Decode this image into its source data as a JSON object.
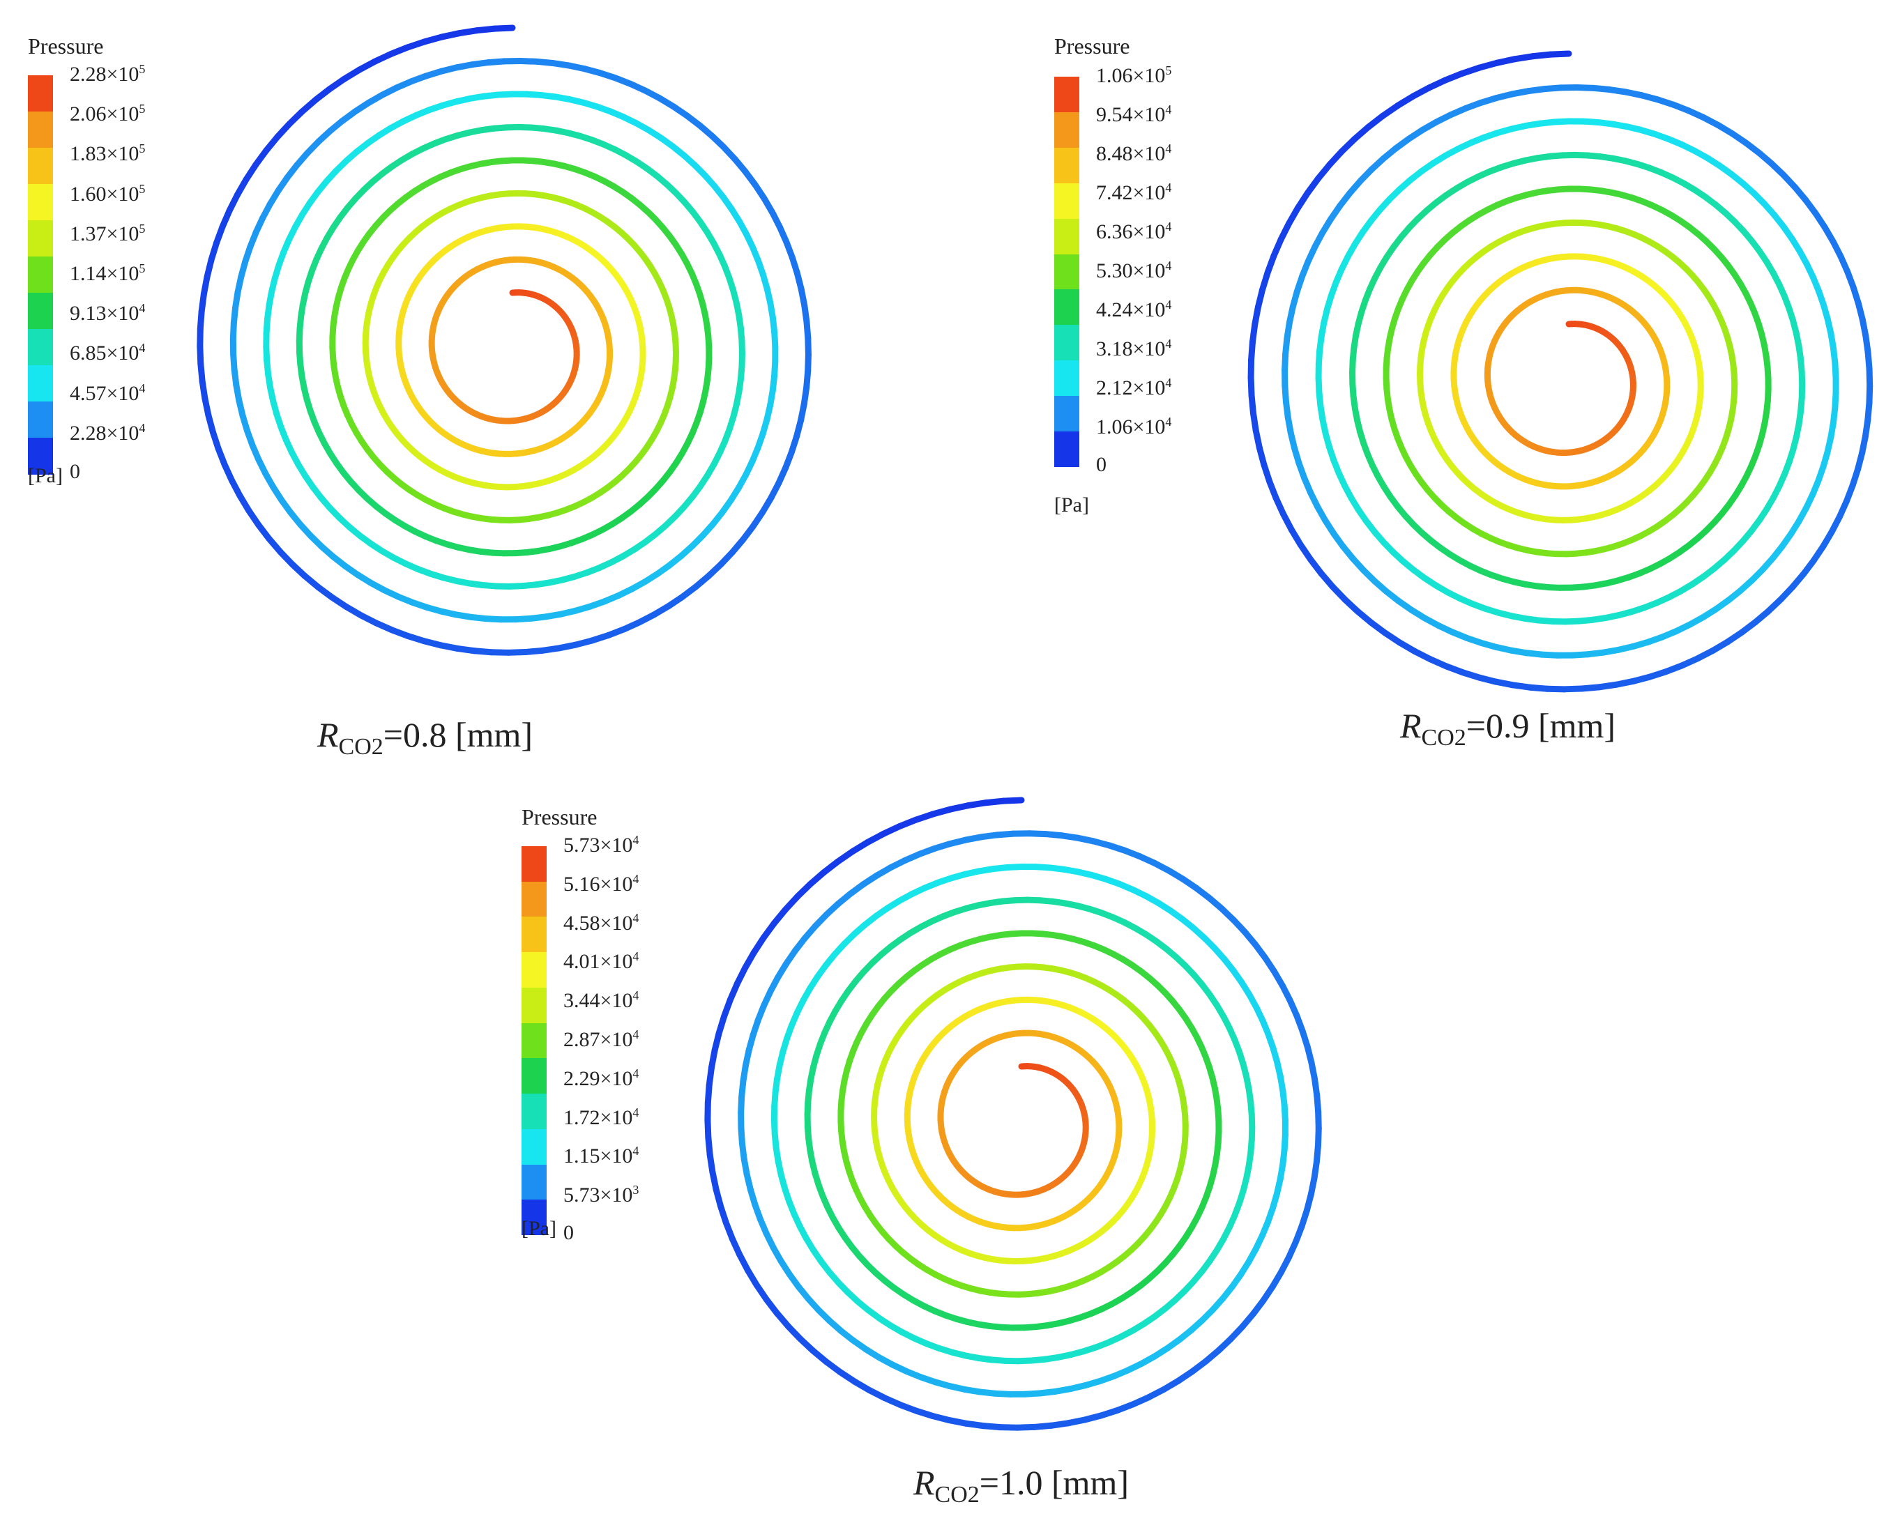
{
  "colormap": [
    "#1536e8",
    "#1e8ff2",
    "#17e6f0",
    "#17e0b6",
    "#1dd24f",
    "#6fe01c",
    "#c9ee16",
    "#f6f524",
    "#f8c318",
    "#f3981a",
    "#ee4818"
  ],
  "panels": [
    {
      "legend": {
        "title": "Pressure",
        "unit": "[Pa]",
        "ticks": [
          {
            "mant": "2.28",
            "exp": "5"
          },
          {
            "mant": "2.06",
            "exp": "5"
          },
          {
            "mant": "1.83",
            "exp": "5"
          },
          {
            "mant": "1.60",
            "exp": "5"
          },
          {
            "mant": "1.37",
            "exp": "5"
          },
          {
            "mant": "1.14",
            "exp": "5"
          },
          {
            "mant": "9.13",
            "exp": "4"
          },
          {
            "mant": "6.85",
            "exp": "4"
          },
          {
            "mant": "4.57",
            "exp": "4"
          },
          {
            "mant": "2.28",
            "exp": "4"
          },
          {
            "mant": "0",
            "exp": ""
          }
        ]
      },
      "caption": {
        "symbol": "R",
        "subscript": "CO2",
        "value": "=0.8 [mm]"
      }
    },
    {
      "legend": {
        "title": "Pressure",
        "unit": "[Pa]",
        "ticks": [
          {
            "mant": "1.06",
            "exp": "5"
          },
          {
            "mant": "9.54",
            "exp": "4"
          },
          {
            "mant": "8.48",
            "exp": "4"
          },
          {
            "mant": "7.42",
            "exp": "4"
          },
          {
            "mant": "6.36",
            "exp": "4"
          },
          {
            "mant": "5.30",
            "exp": "4"
          },
          {
            "mant": "4.24",
            "exp": "4"
          },
          {
            "mant": "3.18",
            "exp": "4"
          },
          {
            "mant": "2.12",
            "exp": "4"
          },
          {
            "mant": "1.06",
            "exp": "4"
          },
          {
            "mant": "0",
            "exp": ""
          }
        ]
      },
      "caption": {
        "symbol": "R",
        "subscript": "CO2",
        "value": "=0.9 [mm]"
      }
    },
    {
      "legend": {
        "title": "Pressure",
        "unit": "[Pa]",
        "ticks": [
          {
            "mant": "5.73",
            "exp": "4"
          },
          {
            "mant": "5.16",
            "exp": "4"
          },
          {
            "mant": "4.58",
            "exp": "4"
          },
          {
            "mant": "4.01",
            "exp": "4"
          },
          {
            "mant": "3.44",
            "exp": "4"
          },
          {
            "mant": "2.87",
            "exp": "4"
          },
          {
            "mant": "2.29",
            "exp": "4"
          },
          {
            "mant": "1.72",
            "exp": "4"
          },
          {
            "mant": "1.15",
            "exp": "4"
          },
          {
            "mant": "5.73",
            "exp": "3"
          },
          {
            "mant": "0",
            "exp": ""
          }
        ]
      },
      "caption": {
        "symbol": "R",
        "subscript": "CO2",
        "value": "=1.0 [mm]"
      }
    }
  ]
}
